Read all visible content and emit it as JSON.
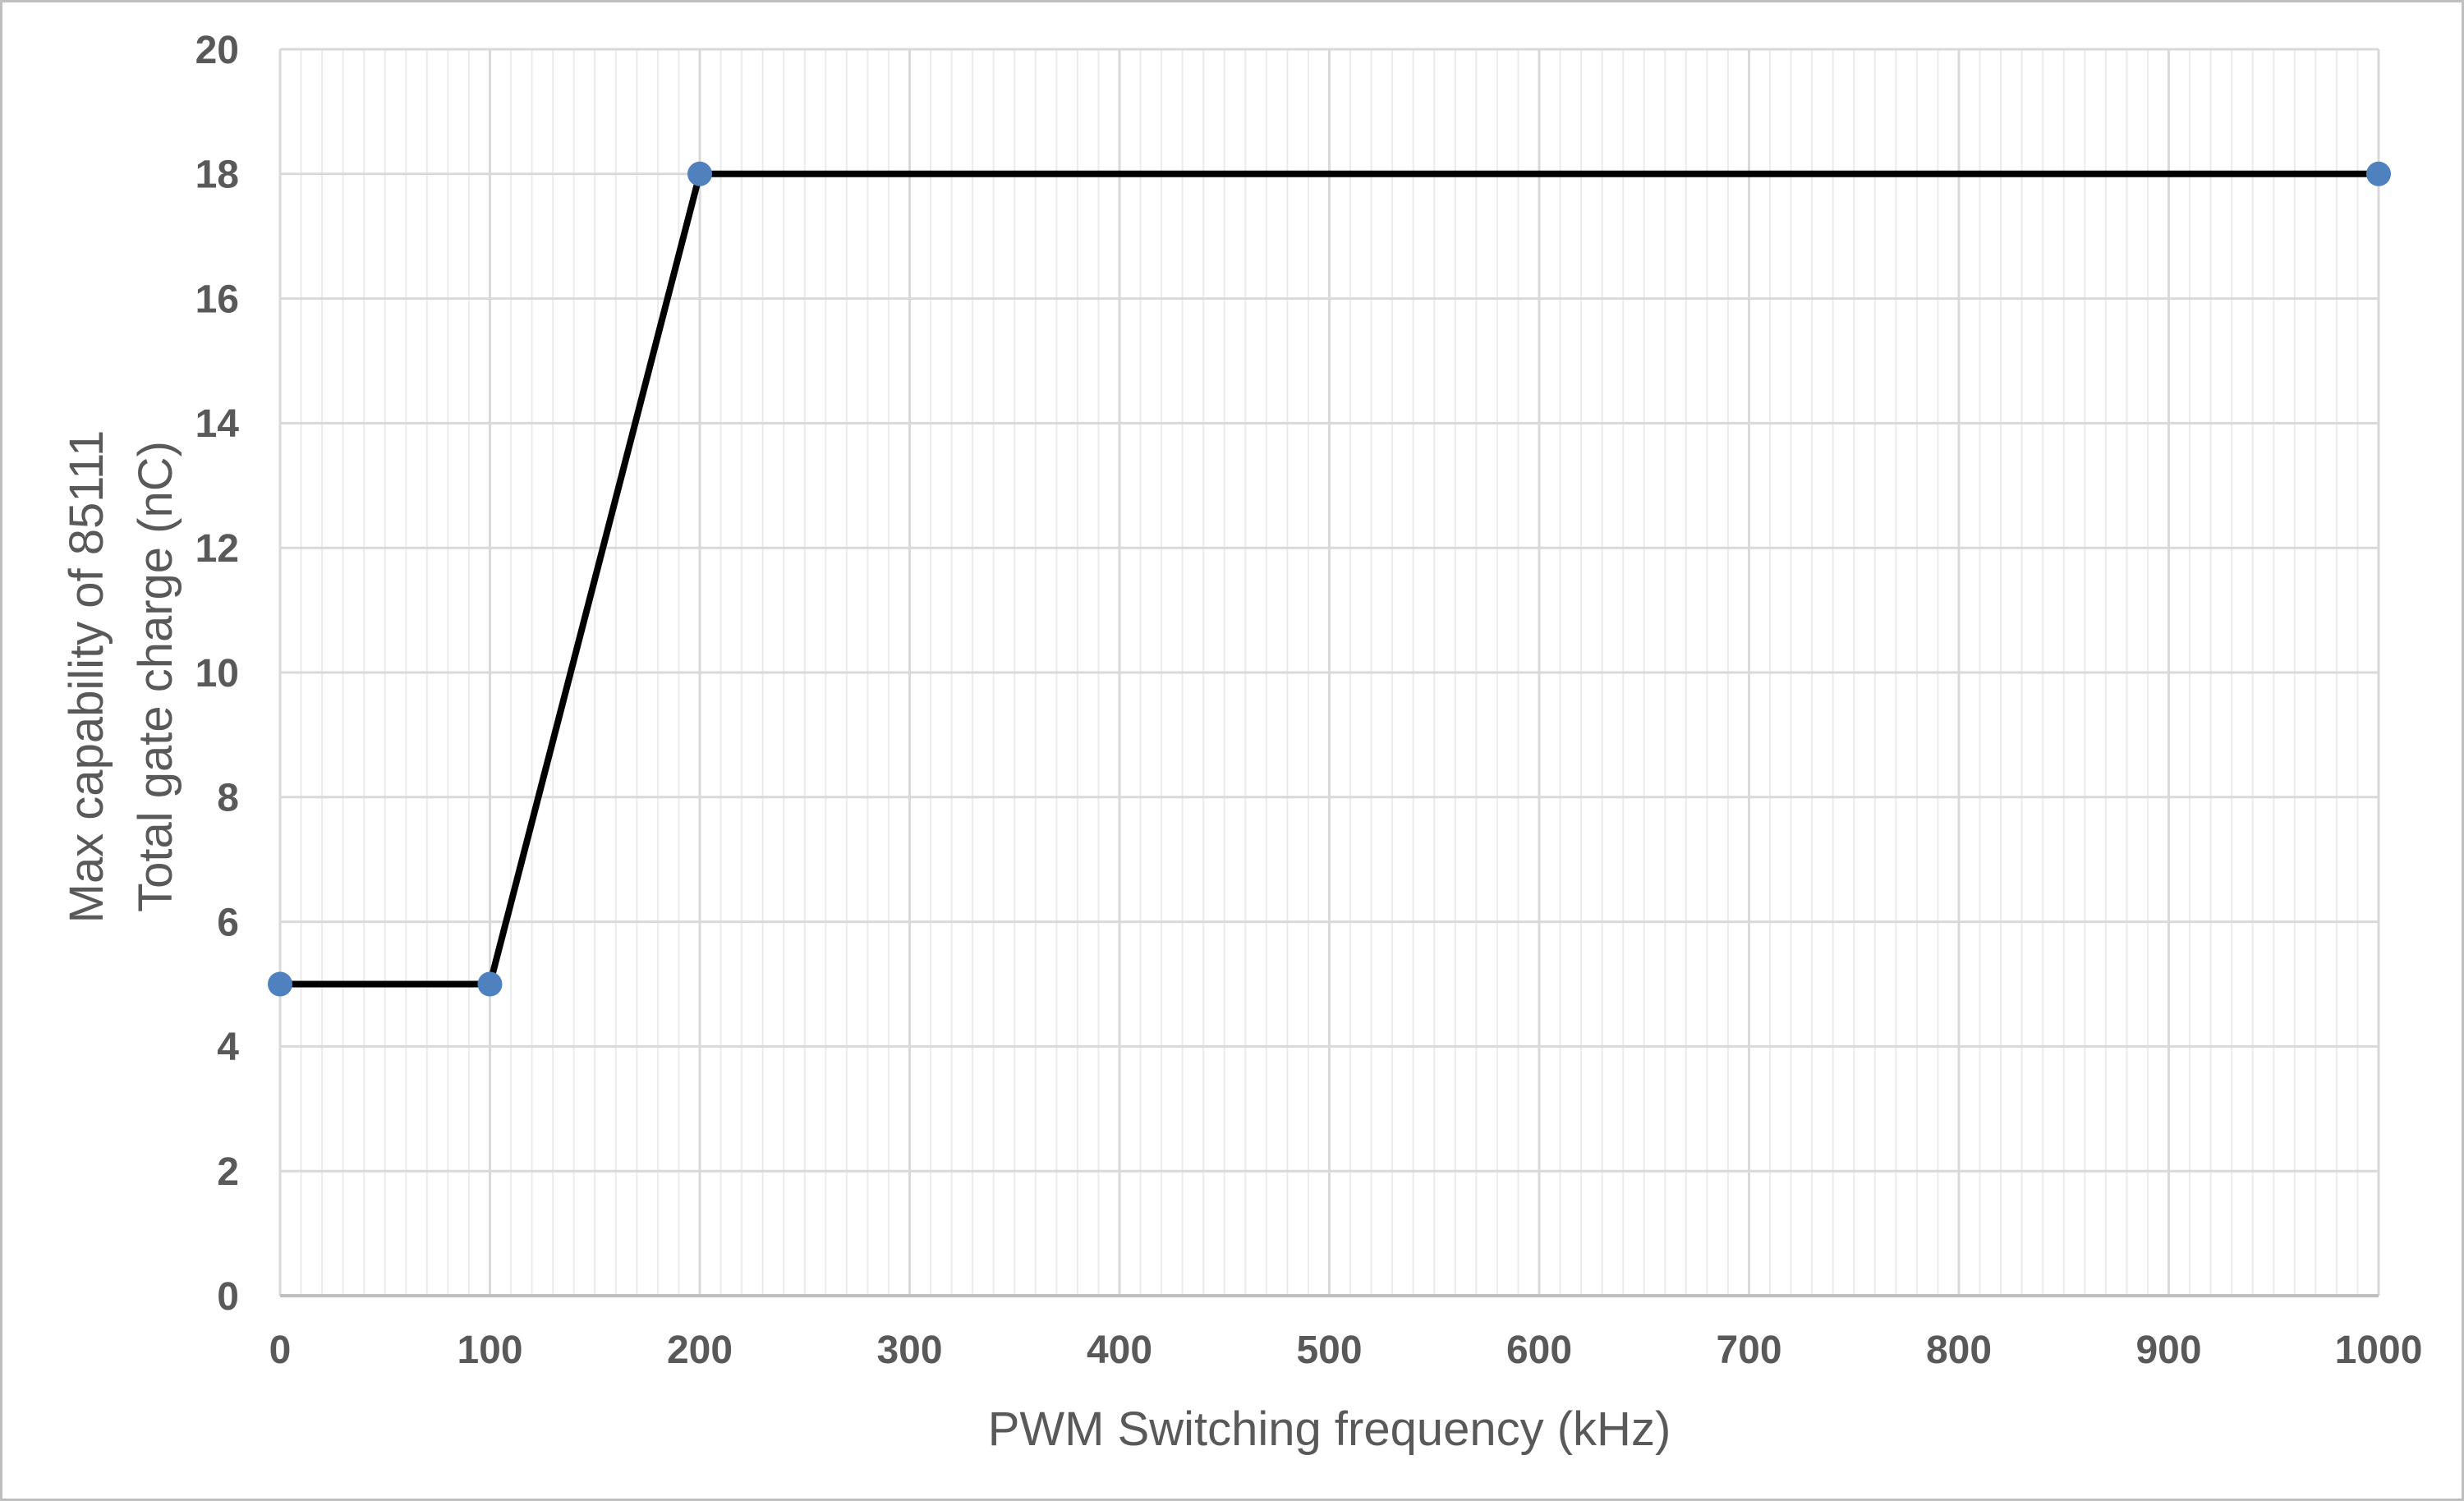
{
  "figure": {
    "background": "#ffffff",
    "frame_border_color": "#bfbfbf"
  },
  "chart_data": {
    "type": "line",
    "title": "",
    "xlabel": "PWM Switching frequency (kHz)",
    "ylabel_lines": [
      "Max capability of 85111",
      "Total gate charge (nC)"
    ],
    "series": [
      {
        "x": [
          0,
          100,
          200,
          1000
        ],
        "y": [
          5,
          5,
          18,
          18
        ]
      }
    ],
    "xlim": [
      0,
      1000
    ],
    "ylim": [
      0,
      20
    ],
    "x_ticks": [
      0,
      100,
      200,
      300,
      400,
      500,
      600,
      700,
      800,
      900,
      1000
    ],
    "y_ticks": [
      0,
      2,
      4,
      6,
      8,
      10,
      12,
      14,
      16,
      18,
      20
    ],
    "x_minor_step": 10,
    "x_major_step": 100,
    "grid": "horizontal major, vertical major and minor",
    "legend": "none",
    "marker": "circle",
    "colors": {
      "line": "#000000",
      "marker": "#4e81bd",
      "tick_label": "#595959",
      "axis_title": "#595959",
      "gridline_major": "#d9d9d9",
      "gridline_minor": "#ebebeb",
      "axis_line": "#bfbfbf"
    }
  }
}
